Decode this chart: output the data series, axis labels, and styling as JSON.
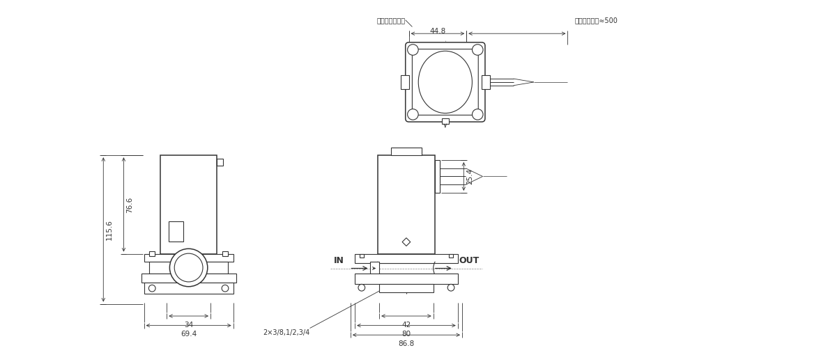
{
  "bg_color": "#ffffff",
  "lc": "#333333",
  "dc": "#333333",
  "lw": 0.8,
  "lw_thick": 1.1,
  "lw_dim": 0.6,
  "labels": {
    "IN": "IN",
    "OUT": "OUT",
    "lamp_case": "ランプ付の場合",
    "lead_length": "リード線長さ≈500",
    "port_size": "2×3/8,1/2,3/4",
    "d34": "34",
    "d694": "69.4",
    "d766": "76.6",
    "d1156": "115.6",
    "d42": "42",
    "d80": "80",
    "d868": "86.8",
    "d448": "44.8",
    "d254": "25.4"
  }
}
